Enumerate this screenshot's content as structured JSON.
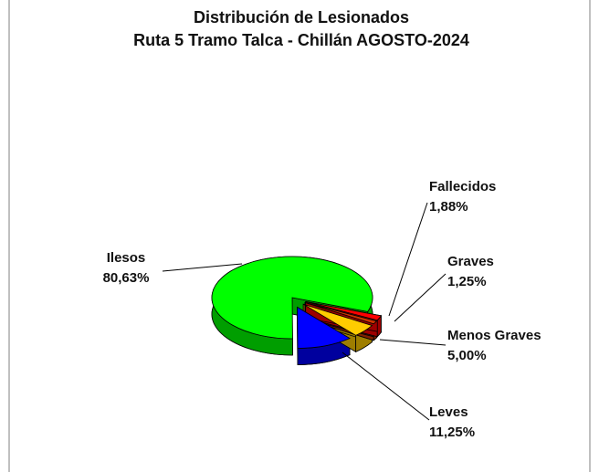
{
  "chart_data": {
    "type": "pie",
    "title": "Distribución de Lesionados",
    "subtitle": "Ruta 5 Tramo Talca - Chillán AGOSTO-2024",
    "categories": [
      "Ilesos",
      "Leves",
      "Menos Graves",
      "Graves",
      "Fallecidos"
    ],
    "values": [
      80.63,
      11.25,
      5.0,
      1.25,
      1.88
    ],
    "value_labels": [
      "80,63%",
      "11,25%",
      "5,00%",
      "1,25%",
      "1,88%"
    ],
    "colors": [
      "#00ff00",
      "#0000ff",
      "#ffcc00",
      "#cc3300",
      "#ff0000"
    ],
    "three_d": true,
    "exploded": true
  }
}
